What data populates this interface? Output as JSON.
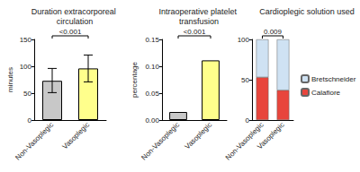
{
  "chart_data": [
    {
      "type": "bar",
      "title": "Duration extracorporeal circulation",
      "ylabel": "minutes",
      "categories": [
        "Non-Vasoplegic",
        "Vasoplegic"
      ],
      "values": [
        73,
        96
      ],
      "colors": [
        "#c8c8c8",
        "#ffff8c"
      ],
      "error_bars": [
        [
          51,
          96
        ],
        [
          71,
          121
        ]
      ],
      "ylim": [
        0,
        150
      ],
      "yticks": [
        0,
        50,
        100,
        150
      ],
      "annotation": "<0.001",
      "grid": false
    },
    {
      "type": "bar",
      "title": "Intraoperative platelet transfusion",
      "ylabel": "percentage",
      "categories": [
        "Non-Vasoplegic",
        "Vasoplegic"
      ],
      "values": [
        0.015,
        0.111
      ],
      "colors": [
        "#c8c8c8",
        "#ffff8c"
      ],
      "ylim": [
        0,
        0.15
      ],
      "yticks": [
        {
          "value": 0,
          "label": "0.00"
        },
        {
          "value": 0.05,
          "label": "0.05"
        },
        {
          "value": 0.1,
          "label": "0.10"
        },
        {
          "value": 0.15,
          "label": "0.15"
        }
      ],
      "annotation": "<0.001",
      "grid": false
    },
    {
      "type": "bar",
      "title": "Cardioplegic solution used",
      "categories": [
        "Non-Vasoplegic",
        "Vasoplegic"
      ],
      "stacked": true,
      "series": [
        {
          "name": "Calafiore",
          "color": "#e8453c",
          "values": [
            53,
            37
          ]
        },
        {
          "name": "Bretschneider",
          "color": "#cfe2f3",
          "values": [
            47,
            63
          ]
        }
      ],
      "ylim": [
        0,
        100
      ],
      "yticks": [
        0,
        50,
        100
      ],
      "annotation": "0.009",
      "legend": "right",
      "grid": false
    }
  ]
}
